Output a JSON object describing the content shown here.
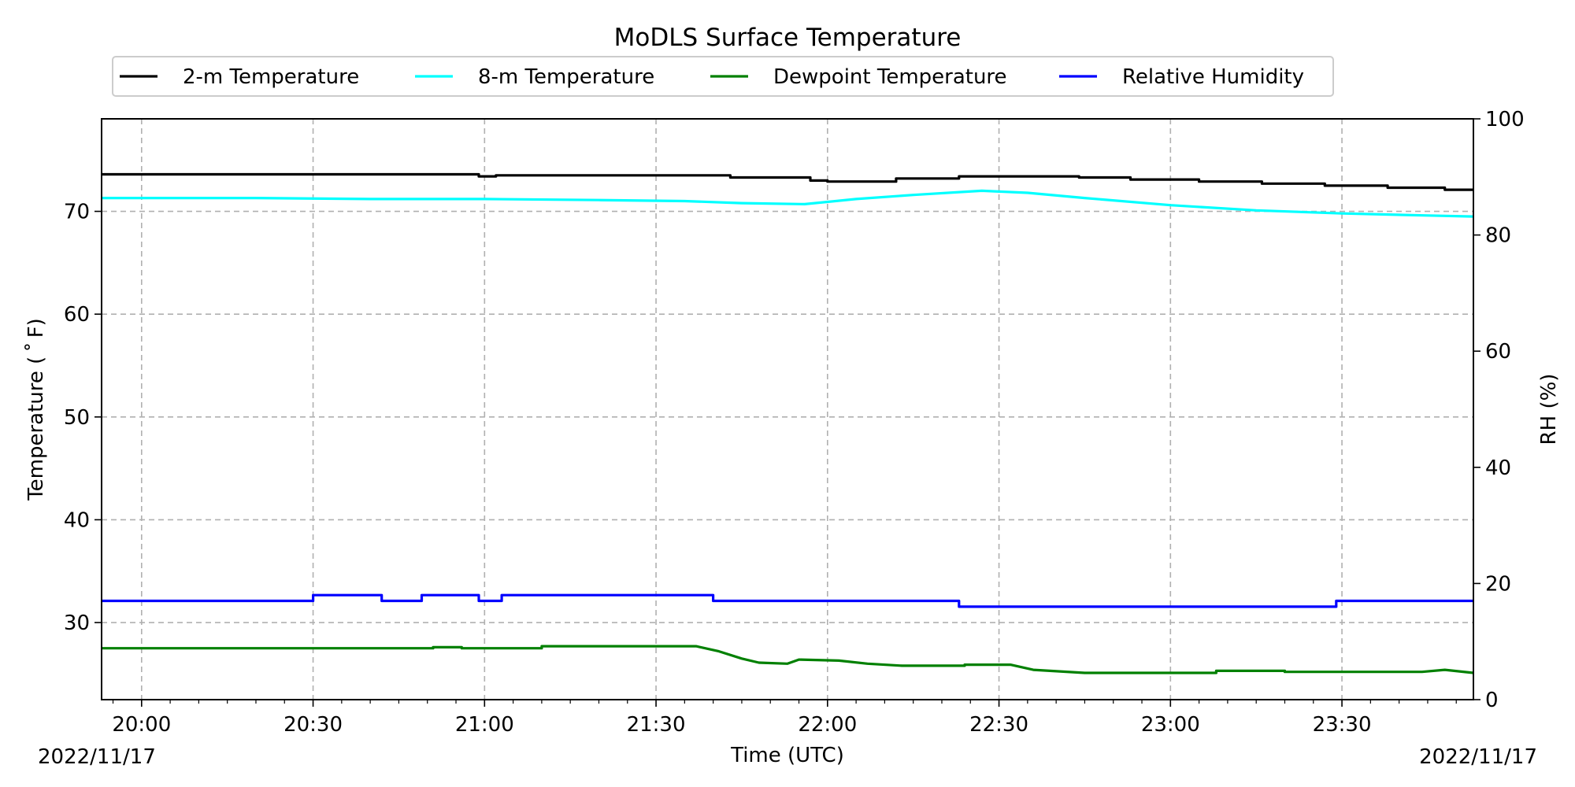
{
  "chart_data": {
    "type": "line",
    "title": "MoDLS Surface Temperature",
    "xlabel": "Time (UTC)",
    "ylabel": "Temperature ($^\\circ$F)",
    "ylabel_display": "Temperature ( ˚ F)",
    "y2label": "RH (%)",
    "date_left": "2022/11/17",
    "date_right": "2022/11/17",
    "xlim": [
      "19:53",
      "23:53"
    ],
    "ylim": [
      22.5,
      79
    ],
    "y2lim": [
      0,
      100
    ],
    "x_ticks": [
      "20:00",
      "20:30",
      "21:00",
      "21:30",
      "22:00",
      "22:30",
      "23:00",
      "23:30"
    ],
    "y_ticks": [
      30,
      40,
      50,
      60,
      70
    ],
    "y2_ticks": [
      0,
      20,
      40,
      60,
      80,
      100
    ],
    "grid": true,
    "legend_position": "top",
    "series": [
      {
        "name": "2-m Temperature",
        "axis": "left",
        "color": "#000000",
        "points": [
          [
            "19:53",
            73.6
          ],
          [
            "20:59",
            73.6
          ],
          [
            "20:59",
            73.4
          ],
          [
            "21:02",
            73.4
          ],
          [
            "21:02",
            73.5
          ],
          [
            "21:43",
            73.5
          ],
          [
            "21:43",
            73.3
          ],
          [
            "21:57",
            73.3
          ],
          [
            "21:57",
            73.0
          ],
          [
            "22:00",
            73.0
          ],
          [
            "22:00",
            72.9
          ],
          [
            "22:12",
            72.9
          ],
          [
            "22:12",
            73.2
          ],
          [
            "22:23",
            73.2
          ],
          [
            "22:23",
            73.4
          ],
          [
            "22:44",
            73.4
          ],
          [
            "22:44",
            73.3
          ],
          [
            "22:53",
            73.3
          ],
          [
            "22:53",
            73.1
          ],
          [
            "23:05",
            73.1
          ],
          [
            "23:05",
            72.9
          ],
          [
            "23:16",
            72.9
          ],
          [
            "23:16",
            72.7
          ],
          [
            "23:27",
            72.7
          ],
          [
            "23:27",
            72.5
          ],
          [
            "23:38",
            72.5
          ],
          [
            "23:38",
            72.3
          ],
          [
            "23:48",
            72.3
          ],
          [
            "23:48",
            72.1
          ],
          [
            "23:53",
            72.1
          ]
        ]
      },
      {
        "name": "8-m Temperature",
        "axis": "left",
        "color": "#00ffff",
        "points": [
          [
            "19:53",
            71.3
          ],
          [
            "20:20",
            71.3
          ],
          [
            "20:40",
            71.2
          ],
          [
            "21:00",
            71.2
          ],
          [
            "21:20",
            71.1
          ],
          [
            "21:35",
            71.0
          ],
          [
            "21:45",
            70.8
          ],
          [
            "21:56",
            70.7
          ],
          [
            "22:05",
            71.2
          ],
          [
            "22:15",
            71.6
          ],
          [
            "22:27",
            72.0
          ],
          [
            "22:35",
            71.8
          ],
          [
            "22:45",
            71.3
          ],
          [
            "23:00",
            70.6
          ],
          [
            "23:15",
            70.1
          ],
          [
            "23:30",
            69.8
          ],
          [
            "23:45",
            69.6
          ],
          [
            "23:53",
            69.5
          ]
        ]
      },
      {
        "name": "Dewpoint Temperature",
        "axis": "left",
        "color": "#008000",
        "points": [
          [
            "19:53",
            27.5
          ],
          [
            "20:51",
            27.5
          ],
          [
            "20:51",
            27.6
          ],
          [
            "20:56",
            27.6
          ],
          [
            "20:56",
            27.5
          ],
          [
            "21:10",
            27.5
          ],
          [
            "21:10",
            27.7
          ],
          [
            "21:37",
            27.7
          ],
          [
            "21:41",
            27.2
          ],
          [
            "21:45",
            26.5
          ],
          [
            "21:48",
            26.1
          ],
          [
            "21:53",
            26.0
          ],
          [
            "21:55",
            26.4
          ],
          [
            "22:02",
            26.3
          ],
          [
            "22:07",
            26.0
          ],
          [
            "22:13",
            25.8
          ],
          [
            "22:24",
            25.8
          ],
          [
            "22:24",
            25.9
          ],
          [
            "22:32",
            25.9
          ],
          [
            "22:36",
            25.4
          ],
          [
            "22:45",
            25.1
          ],
          [
            "23:08",
            25.1
          ],
          [
            "23:08",
            25.3
          ],
          [
            "23:20",
            25.3
          ],
          [
            "23:20",
            25.2
          ],
          [
            "23:44",
            25.2
          ],
          [
            "23:48",
            25.4
          ],
          [
            "23:53",
            25.1
          ]
        ]
      },
      {
        "name": "Relative Humidity",
        "axis": "right",
        "color": "#0000ff",
        "points": [
          [
            "19:53",
            17.0
          ],
          [
            "20:30",
            17.0
          ],
          [
            "20:30",
            18.0
          ],
          [
            "20:42",
            18.0
          ],
          [
            "20:42",
            17.0
          ],
          [
            "20:49",
            17.0
          ],
          [
            "20:49",
            18.0
          ],
          [
            "20:59",
            18.0
          ],
          [
            "20:59",
            17.0
          ],
          [
            "21:03",
            17.0
          ],
          [
            "21:03",
            18.0
          ],
          [
            "21:40",
            18.0
          ],
          [
            "21:40",
            17.0
          ],
          [
            "22:23",
            17.0
          ],
          [
            "22:23",
            16.0
          ],
          [
            "23:29",
            16.0
          ],
          [
            "23:29",
            17.0
          ],
          [
            "23:53",
            17.0
          ]
        ]
      }
    ]
  }
}
